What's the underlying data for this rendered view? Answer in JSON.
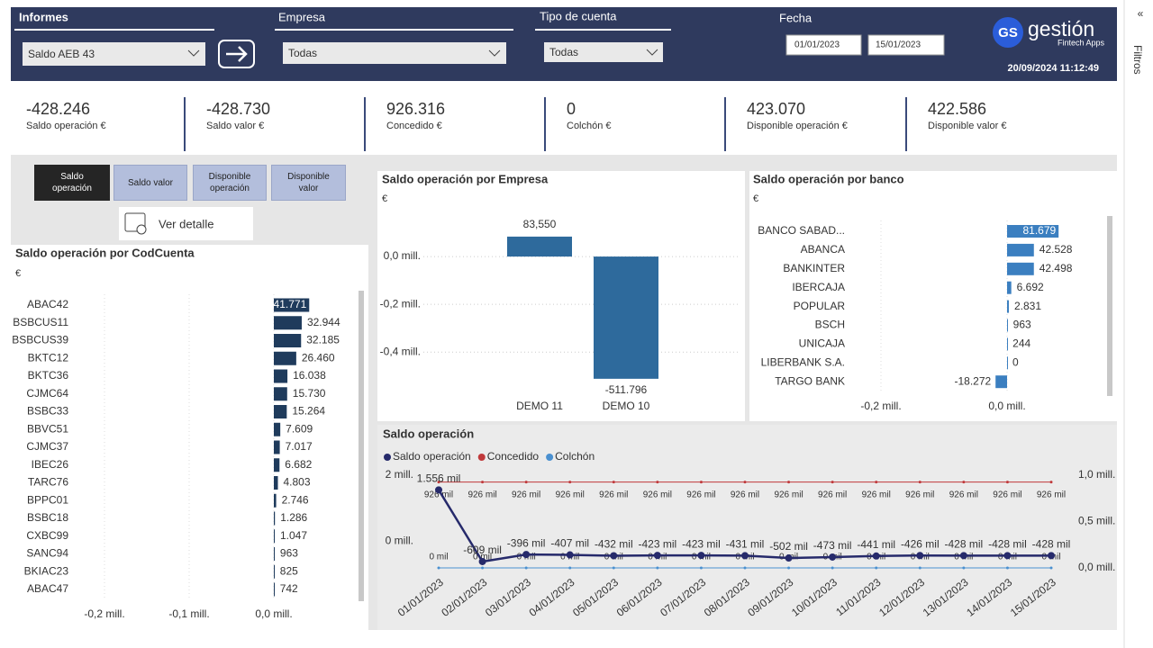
{
  "header": {
    "informes": {
      "label": "Informes",
      "value": "Saldo AEB 43"
    },
    "empresa": {
      "label": "Empresa",
      "value": "Todas"
    },
    "tipo_cuenta": {
      "label": "Tipo de cuenta",
      "value": "Todas"
    },
    "fecha": {
      "label": "Fecha",
      "from": "01/01/2023",
      "to": "15/01/2023"
    },
    "logo": {
      "mark": "GS",
      "name": "gestión",
      "tagline": "Fintech Apps"
    },
    "timestamp": "20/09/2024 11:12:49"
  },
  "side_panel": {
    "collapse": "«",
    "label": "Filtros"
  },
  "kpis": [
    {
      "value": "-428.246",
      "label": "Saldo operación €"
    },
    {
      "value": "-428.730",
      "label": "Saldo valor €"
    },
    {
      "value": "926.316",
      "label": "Concedido €"
    },
    {
      "value": "0",
      "label": "Colchón €"
    },
    {
      "value": "423.070",
      "label": "Disponible operación €"
    },
    {
      "value": "422.586",
      "label": "Disponible valor €"
    }
  ],
  "buttons": [
    "Saldo operación",
    "Saldo valor",
    "Disponible operación",
    "Disponible valor"
  ],
  "detail_button": "Ver detalle",
  "chart_data": [
    {
      "type": "hbar",
      "title": "Saldo operación por CodCuenta",
      "unit": "€",
      "color": "#1f3b5c",
      "categories": [
        "ABAC42",
        "BSBCUS11",
        "BSBCUS39",
        "BKTC12",
        "BKTC36",
        "CJMC64",
        "BSBC33",
        "BBVC51",
        "CJMC37",
        "IBEC26",
        "TARC76",
        "BPPC01",
        "BSBC18",
        "CXBC99",
        "SANC94",
        "BKIAC23",
        "ABAC47"
      ],
      "values": [
        41771,
        32944,
        32185,
        26460,
        16038,
        15730,
        15264,
        7609,
        7017,
        6682,
        4803,
        2746,
        1286,
        1047,
        963,
        825,
        742
      ],
      "value_labels": [
        "41.771",
        "32.944",
        "32.185",
        "26.460",
        "16.038",
        "15.730",
        "15.264",
        "7.609",
        "7.017",
        "6.682",
        "4.803",
        "2.746",
        "1.286",
        "1.047",
        "963",
        "825",
        "742"
      ],
      "xlim": [
        -300000,
        100000
      ],
      "xticks": [
        {
          "value": -200000,
          "label": "-0,2 mill."
        },
        {
          "value": -100000,
          "label": "-0,1 mill."
        },
        {
          "value": 0,
          "label": "0,0 mill."
        }
      ]
    },
    {
      "type": "bar",
      "title": "Saldo operación por Empresa",
      "unit": "€",
      "color": "#2e6a9c",
      "categories": [
        "DEMO 11",
        "DEMO 10"
      ],
      "values": [
        83550,
        -511796
      ],
      "value_labels": [
        "83,550",
        "-511.796"
      ],
      "ylim": [
        -550000,
        200000
      ],
      "yticks": [
        {
          "value": 0,
          "label": "0,0 mill."
        },
        {
          "value": -200000,
          "label": "-0,2 mill."
        },
        {
          "value": -400000,
          "label": "-0,4 mill."
        }
      ],
      "grid": true
    },
    {
      "type": "hbar",
      "title": "Saldo operación por banco",
      "unit": "€",
      "color": "#3b7fc0",
      "categories": [
        "BANCO SABAD...",
        "ABANCA",
        "BANKINTER",
        "IBERCAJA",
        "POPULAR",
        "BSCH",
        "UNICAJA",
        "LIBERBANK S.A.",
        "TARGO BANK"
      ],
      "values": [
        81679,
        42528,
        42498,
        6692,
        2831,
        963,
        244,
        0,
        -18272
      ],
      "value_labels": [
        "81.679",
        "42.528",
        "42.498",
        "6.692",
        "2.831",
        "963",
        "244",
        "0",
        "-18.272"
      ],
      "xlim": [
        -250000,
        150000
      ],
      "xticks": [
        {
          "value": -200000,
          "label": "-0,2 mill."
        },
        {
          "value": 0,
          "label": "0,0 mill."
        }
      ]
    },
    {
      "type": "line",
      "title": "Saldo operación",
      "x": [
        "01/01/2023",
        "02/01/2023",
        "03/01/2023",
        "04/01/2023",
        "05/01/2023",
        "06/01/2023",
        "07/01/2023",
        "08/01/2023",
        "09/01/2023",
        "10/01/2023",
        "11/01/2023",
        "12/01/2023",
        "13/01/2023",
        "14/01/2023",
        "15/01/2023"
      ],
      "series": [
        {
          "name": "Saldo operación",
          "color": "#262a6b",
          "values": [
            1556000,
            -609000,
            -396000,
            -407000,
            -432000,
            -423000,
            -423000,
            -431000,
            -502000,
            -473000,
            -441000,
            -426000,
            -428000,
            -428000,
            -428000
          ],
          "value_labels": [
            "1.556 mil",
            "-609 mil",
            "-396 mil",
            "-407 mil",
            "-432 mil",
            "-423 mil",
            "-423 mil",
            "-431 mil",
            "-502 mil",
            "-473 mil",
            "-441 mil",
            "-426 mil",
            "-428 mil",
            "-428 mil",
            "-428 mil"
          ]
        },
        {
          "name": "Concedido",
          "color": "#c0393b",
          "axis": "y2",
          "values": [
            926000,
            926000,
            926000,
            926000,
            926000,
            926000,
            926000,
            926000,
            926000,
            926000,
            926000,
            926000,
            926000,
            926000,
            926000
          ],
          "value_labels": [
            "926 mil",
            "926 mil",
            "926 mil",
            "926 mil",
            "926 mil",
            "926 mil",
            "926 mil",
            "926 mil",
            "926 mil",
            "926 mil",
            "926 mil",
            "926 mil",
            "926 mil",
            "926 mil",
            "926 mil"
          ]
        },
        {
          "name": "Colchón",
          "color": "#4a90d0",
          "axis": "y2",
          "values": [
            0,
            0,
            0,
            0,
            0,
            0,
            0,
            0,
            0,
            0,
            0,
            0,
            0,
            0,
            0
          ],
          "value_labels": [
            "0 mil",
            "0 mil",
            "0 mil",
            "0 mil",
            "0 mil",
            "0 mil",
            "0 mil",
            "0 mil",
            "0 mil",
            "0 mil",
            "0 mil",
            "0 mil",
            "0 mil",
            "0 mil",
            "0 mil"
          ]
        }
      ],
      "ylim": [
        -800000,
        2000000
      ],
      "yticks": [
        {
          "value": 2000000,
          "label": "2 mill."
        },
        {
          "value": 0,
          "label": "0 mill."
        }
      ],
      "y2lim": [
        0,
        1000000
      ],
      "y2ticks": [
        {
          "value": 1000000,
          "label": "1,0 mill."
        },
        {
          "value": 500000,
          "label": "0,5 mill."
        },
        {
          "value": 0,
          "label": "0,0 mill."
        }
      ]
    }
  ]
}
